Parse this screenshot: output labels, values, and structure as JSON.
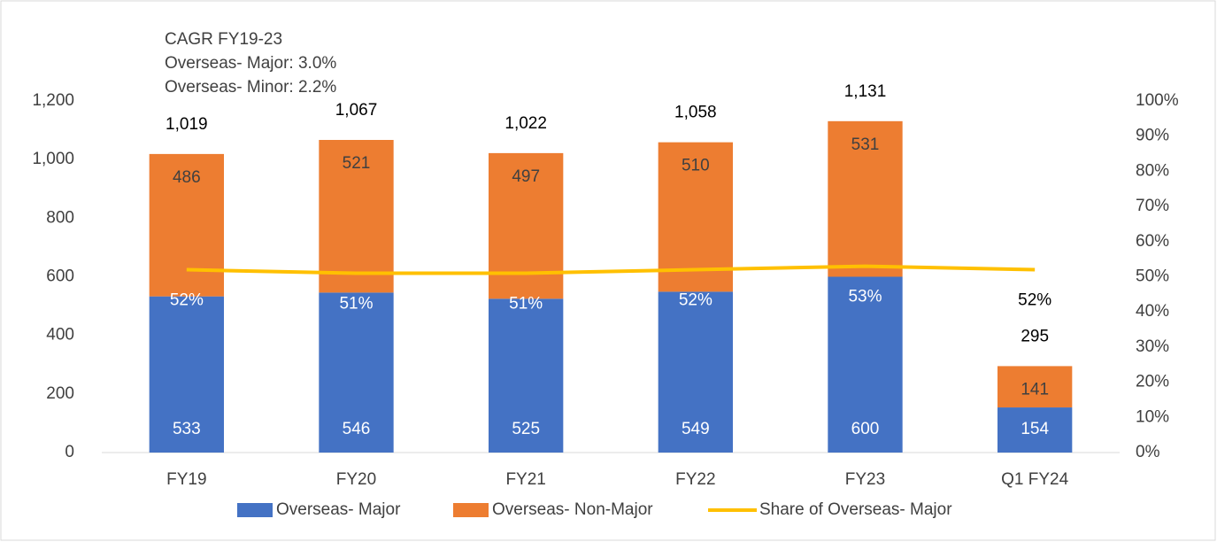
{
  "chart_data": {
    "type": "bar",
    "stacked": true,
    "annotation": [
      "CAGR FY19-23",
      "Overseas- Major: 3.0%",
      "Overseas- Minor: 2.2%"
    ],
    "categories": [
      "FY19",
      "FY20",
      "FY21",
      "FY22",
      "FY23",
      "Q1 FY24"
    ],
    "series": [
      {
        "name": "Overseas- Major",
        "color": "#4472c4",
        "values": [
          533,
          546,
          525,
          549,
          600,
          154
        ]
      },
      {
        "name": "Overseas- Non-Major",
        "color": "#ed7d31",
        "values": [
          486,
          521,
          497,
          510,
          531,
          141
        ]
      },
      {
        "name": "Share of Overseas- Major",
        "color": "#ffc000",
        "axis": "y2",
        "type": "line",
        "values": [
          52,
          51,
          51,
          52,
          53,
          52
        ],
        "value_labels": [
          "52%",
          "51%",
          "51%",
          "52%",
          "53%",
          "52%"
        ]
      }
    ],
    "totals": {
      "values": [
        1019,
        1067,
        1022,
        1058,
        1131,
        295
      ],
      "value_labels": [
        "1,019",
        "1,067",
        "1,022",
        "1,058",
        "1,131",
        "295"
      ]
    },
    "ylim": [
      0,
      1200
    ],
    "yticks": [
      0,
      200,
      400,
      600,
      800,
      {
        "value": 1000,
        "label": "1,000"
      },
      {
        "value": 1200,
        "label": "1,200"
      }
    ],
    "y2lim": [
      0,
      100
    ],
    "y2ticks": [
      {
        "value": 0,
        "label": "0%"
      },
      {
        "value": 10,
        "label": "10%"
      },
      {
        "value": 20,
        "label": "20%"
      },
      {
        "value": 30,
        "label": "30%"
      },
      {
        "value": 40,
        "label": "40%"
      },
      {
        "value": 50,
        "label": "50%"
      },
      {
        "value": 60,
        "label": "60%"
      },
      {
        "value": 70,
        "label": "70%"
      },
      {
        "value": 80,
        "label": "80%"
      },
      {
        "value": 90,
        "label": "90%"
      },
      {
        "value": 100,
        "label": "100%"
      }
    ],
    "grid": false,
    "legend": "bottom"
  }
}
